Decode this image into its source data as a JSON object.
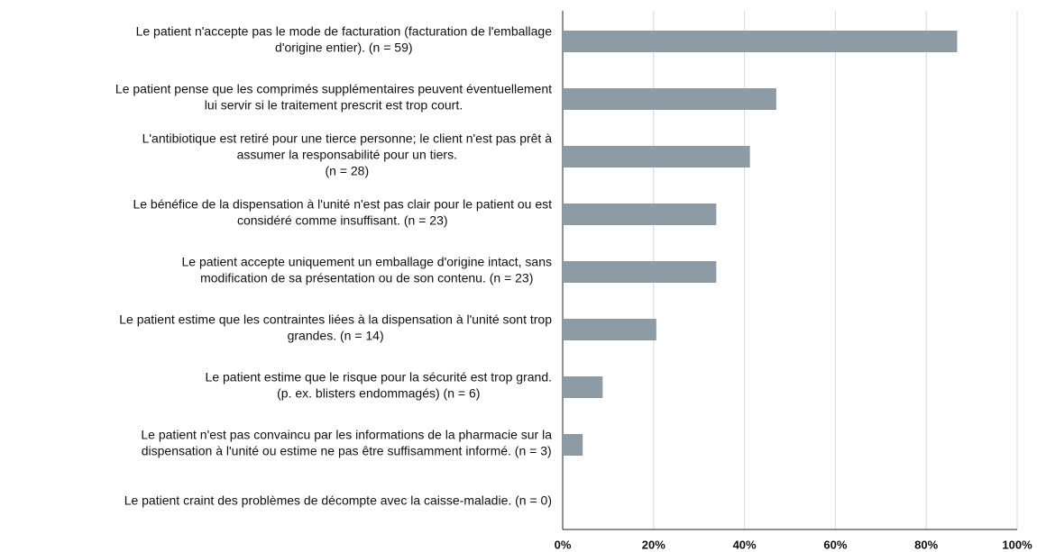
{
  "chart_data": {
    "type": "barh",
    "categories": [
      [
        "Le patient n'accepte pas le mode de facturation (facturation de l'emballage",
        "d'origine entier). (n = 59)"
      ],
      [
        "Le patient pense que les comprimés supplémentaires peuvent éventuellement",
        "lui servir si le traitement prescrit est trop court."
      ],
      [
        "L'antibiotique est retiré pour une tierce personne; le client n'est pas prêt à",
        "assumer la responsabilité pour un tiers.",
        "(n = 28)"
      ],
      [
        "Le bénéfice de la dispensation à l'unité n'est pas clair pour le patient ou est",
        "considéré comme insuffisant. (n = 23)"
      ],
      [
        "Le patient accepte uniquement un emballage d'origine intact, sans",
        "modification de sa présentation ou de son contenu. (n = 23)"
      ],
      [
        "Le patient estime que les contraintes liées à la dispensation à l'unité sont trop",
        "grandes. (n = 14)"
      ],
      [
        "Le patient estime que le risque pour la sécurité est trop grand.",
        "(p. ex. blisters endommagés) (n = 6)"
      ],
      [
        "Le patient n'est pas convaincu par les informations de la pharmacie sur la",
        "dispensation à l'unité ou estime ne pas être suffisamment informé. (n = 3)"
      ],
      [
        "Le patient craint des problèmes de décompte avec la caisse-maladie. (n = 0)"
      ]
    ],
    "values": [
      86.8,
      47,
      41.2,
      33.8,
      33.8,
      20.6,
      8.8,
      4.4,
      0
    ],
    "color": "#8c9ba5",
    "xlim": [
      0,
      100
    ],
    "xticks": [
      {
        "value": 0,
        "label": "0%"
      },
      {
        "value": 20,
        "label": "20%"
      },
      {
        "value": 40,
        "label": "40%"
      },
      {
        "value": 60,
        "label": "60%"
      },
      {
        "value": 80,
        "label": "80%"
      },
      {
        "value": 100,
        "label": "100%"
      }
    ],
    "grid": true
  }
}
